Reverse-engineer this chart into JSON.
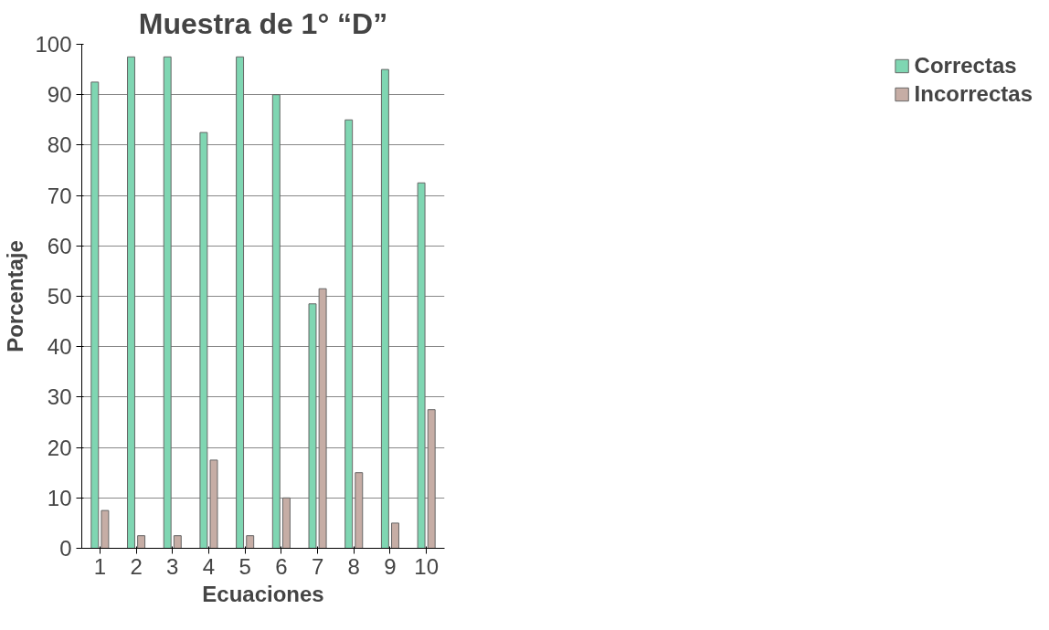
{
  "chart_data": {
    "type": "bar",
    "title": "Muestra de 1° “D”",
    "xlabel": "Ecuaciones",
    "ylabel": "Porcentaje",
    "categories": [
      "1",
      "2",
      "3",
      "4",
      "5",
      "6",
      "7",
      "8",
      "9",
      "10"
    ],
    "series": [
      {
        "name": "Correctas",
        "color": "#7fd6b2",
        "values": [
          92.5,
          97.5,
          97.5,
          82.5,
          97.5,
          90,
          48.5,
          85,
          95,
          72.5
        ]
      },
      {
        "name": "Incorrectas",
        "color": "#c6ada5",
        "values": [
          7.5,
          2.5,
          2.5,
          17.5,
          2.5,
          10,
          51.5,
          15,
          5,
          27.5
        ]
      }
    ],
    "ylim": [
      0,
      100
    ],
    "yticks": [
      0,
      10,
      20,
      30,
      40,
      50,
      60,
      70,
      80,
      90,
      100
    ],
    "grid": "y",
    "legend": "right"
  }
}
